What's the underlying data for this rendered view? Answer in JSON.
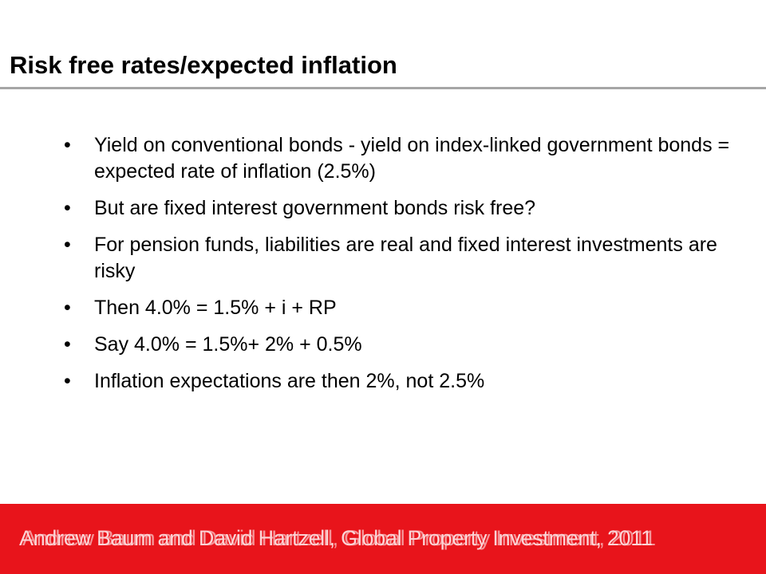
{
  "slide": {
    "title": "Risk free rates/expected inflation",
    "bullet_symbol": "•",
    "bullets": [
      "Yield on conventional bonds - yield on index-linked government bonds = expected rate of inflation (2.5%)",
      "But are fixed interest government bonds risk free?",
      "For pension funds, liabilities are real and fixed interest investments are risky",
      "Then 4.0% = 1.5% + i + RP",
      "Say 4.0% = 1.5%+ 2% + 0.5%",
      "Inflation expectations are then 2%, not 2.5%"
    ]
  },
  "footer": {
    "text": "Andrew Baum and David Hartzell, Global Property Investment, 2011",
    "background_color": "#e8141b"
  },
  "colors": {
    "title_rule": "#a6a6a6",
    "text": "#000000"
  }
}
